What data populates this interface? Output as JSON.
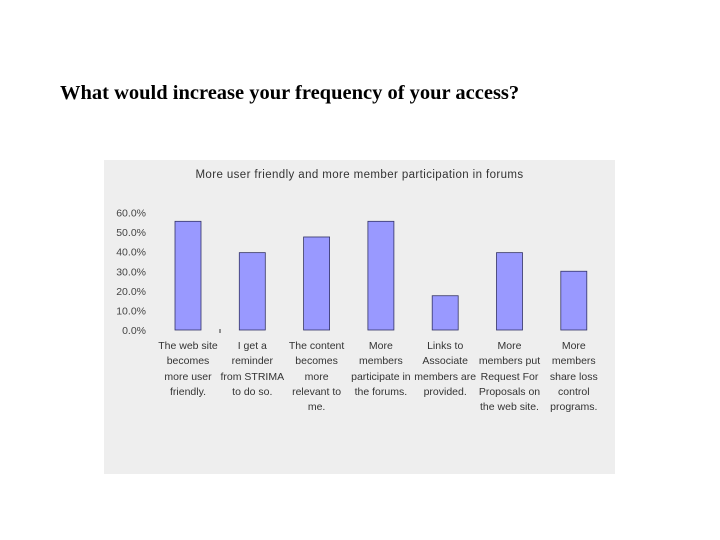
{
  "slide": {
    "title": "What would increase your frequency of your access?"
  },
  "colors": {
    "bar_fill": "#9999ff",
    "bar_stroke": "#333366",
    "panel_bg": "#eeeeee"
  },
  "chart_data": {
    "type": "bar",
    "title": "More user friendly and more member participation in forums",
    "xlabel": "",
    "ylabel": "",
    "ylim": [
      0,
      60
    ],
    "yticks": [
      "0.0%",
      "10.0%",
      "20.0%",
      "30.0%",
      "40.0%",
      "50.0%",
      "60.0%"
    ],
    "categories": [
      "The web site becomes more user friendly.",
      "I get a reminder from STRIMA to do so.",
      "The content becomes more relevant to me.",
      "More members participate in the forums.",
      "Links to Associate members are provided.",
      "More members put Request For Proposals on the web site.",
      "More members share loss control programs."
    ],
    "values": [
      55.5,
      39.5,
      47.5,
      55.5,
      17.5,
      39.5,
      30.0
    ],
    "grid": false,
    "legend": "none"
  }
}
